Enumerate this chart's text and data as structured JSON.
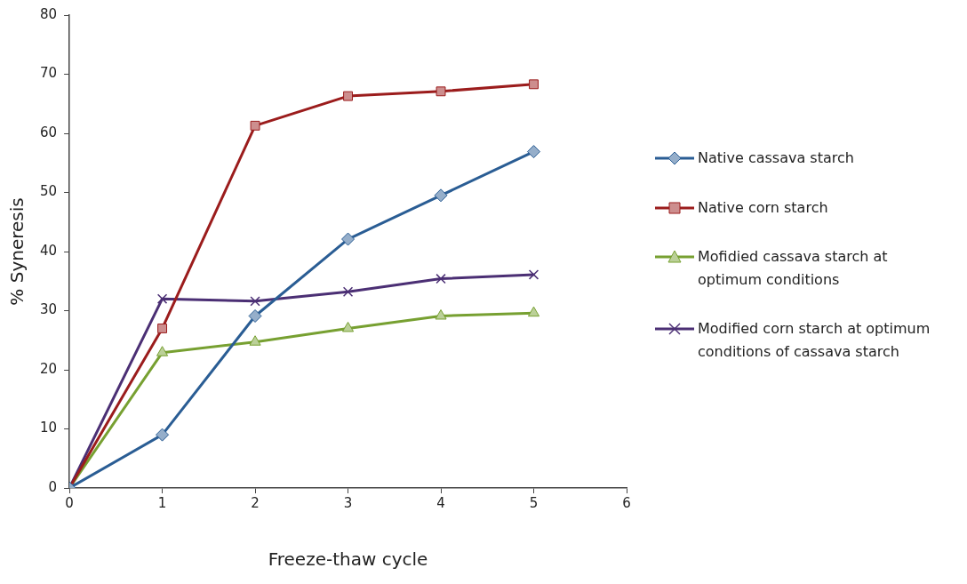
{
  "chart_data": {
    "type": "line",
    "xlabel": "Freeze-thaw cycle",
    "ylabel": "% Syneresis",
    "x": [
      0,
      1,
      2,
      3,
      4,
      5
    ],
    "xlim": [
      0,
      6
    ],
    "xticks": [
      0,
      1,
      2,
      3,
      4,
      5,
      6
    ],
    "ylim": [
      0,
      80
    ],
    "yticks": [
      0,
      10,
      20,
      30,
      40,
      50,
      60,
      70,
      80
    ],
    "grid": false,
    "legend": "right",
    "line_style": "solid",
    "series": [
      {
        "name": "Native cassava starch",
        "color": "#2a5d94",
        "marker": "diamond",
        "values": [
          0,
          9.0,
          29.1,
          42.1,
          49.5,
          56.9
        ]
      },
      {
        "name": "Native corn starch",
        "color": "#9b1c1c",
        "marker": "square",
        "values": [
          0,
          27.0,
          61.3,
          66.3,
          67.1,
          68.3
        ]
      },
      {
        "name": "Mofidied cassava starch at optimum conditions",
        "color": "#77a031",
        "marker": "triangle",
        "values": [
          0,
          22.9,
          24.7,
          27.0,
          29.1,
          29.6
        ]
      },
      {
        "name": "Modified corn starch at optimum conditions of cassava starch",
        "color": "#4b2f74",
        "marker": "cross",
        "values": [
          0,
          32.0,
          31.6,
          33.2,
          35.4,
          36.1
        ]
      }
    ]
  }
}
